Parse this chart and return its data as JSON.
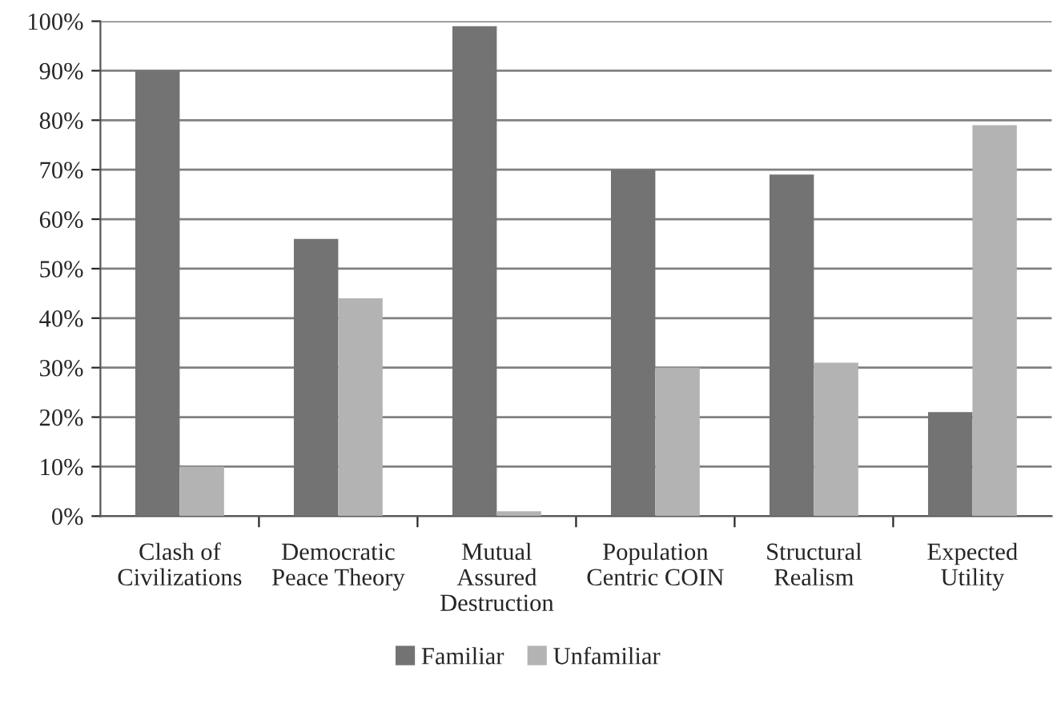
{
  "chart_data": {
    "type": "bar",
    "categories": [
      "Clash of\nCivilizations",
      "Democratic\nPeace Theory",
      "Mutual\nAssured\nDestruction",
      "Population\nCentric COIN",
      "Structural\nRealism",
      "Expected\nUtility"
    ],
    "series": [
      {
        "name": "Familiar",
        "color": "#737373",
        "values": [
          90,
          56,
          99,
          70,
          69,
          21
        ]
      },
      {
        "name": "Unfamiliar",
        "color": "#b3b3b3",
        "values": [
          10,
          44,
          1,
          30,
          31,
          79
        ]
      }
    ],
    "ylim": [
      0,
      100
    ],
    "yticks": [
      {
        "value": 0,
        "label": "0%"
      },
      {
        "value": 10,
        "label": "10%"
      },
      {
        "value": 20,
        "label": "20%"
      },
      {
        "value": 30,
        "label": "30%"
      },
      {
        "value": 40,
        "label": "40%"
      },
      {
        "value": 50,
        "label": "50%"
      },
      {
        "value": 60,
        "label": "60%"
      },
      {
        "value": 70,
        "label": "70%"
      },
      {
        "value": 80,
        "label": "80%"
      },
      {
        "value": 90,
        "label": "90%"
      },
      {
        "value": 100,
        "label": "100%"
      }
    ],
    "grid": "y",
    "legend": "bottom"
  }
}
